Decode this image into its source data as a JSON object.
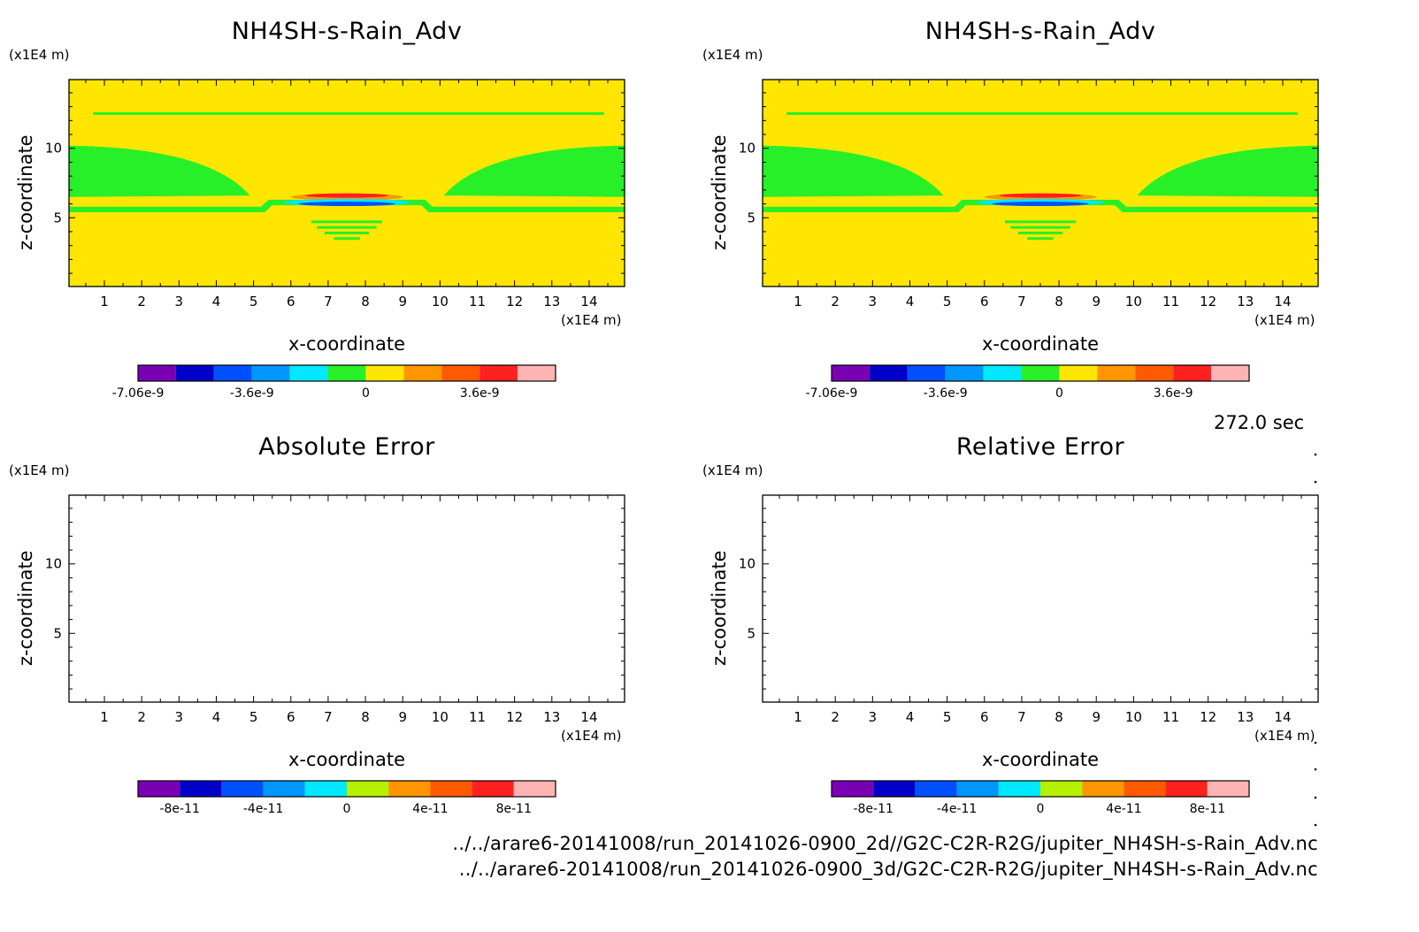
{
  "time_label": "272.0 sec",
  "file_paths": [
    "../../arare6-20141008/run_20141026-0900_2d//G2C-C2R-R2G/jupiter_NH4SH-s-Rain_Adv.nc",
    "../../arare6-20141008/run_20141026-0900_3d/G2C-C2R-R2G/jupiter_NH4SH-s-Rain_Adv.nc"
  ],
  "colors": {
    "field_background": "#ffe600",
    "field_green": "#28f028",
    "field_red": "#ff2020",
    "field_blue": "#0050ff",
    "field_cyan": "#00e8ff",
    "field_orange": "#ff9600"
  },
  "chart_data": [
    {
      "type": "heatmap",
      "title": "NH4SH-s-Rain_Adv",
      "xlabel": "x-coordinate",
      "ylabel": "z-coordinate",
      "x_unit": "(x1E4 m)",
      "y_unit": "(x1E4 m)",
      "xticks": [
        "1",
        "2",
        "3",
        "4",
        "5",
        "6",
        "7",
        "8",
        "9",
        "10",
        "11",
        "12",
        "13",
        "14"
      ],
      "yticks": [
        "5",
        "10"
      ],
      "xlim": [
        0.05,
        14.95
      ],
      "ylim": [
        0.05,
        14.95
      ],
      "colorbar": {
        "labels": [
          "-7.06e-9",
          "-3.6e-9",
          "0",
          "3.6e-9"
        ],
        "colors": [
          "#7a00b4",
          "#0000c8",
          "#0050ff",
          "#0096ff",
          "#00e8ff",
          "#28f028",
          "#ffe600",
          "#ff9600",
          "#ff5a00",
          "#ff2020",
          "#ffb4b4"
        ]
      }
    },
    {
      "type": "heatmap",
      "title": "NH4SH-s-Rain_Adv",
      "xlabel": "x-coordinate",
      "ylabel": "z-coordinate",
      "x_unit": "(x1E4 m)",
      "y_unit": "(x1E4 m)",
      "xticks": [
        "1",
        "2",
        "3",
        "4",
        "5",
        "6",
        "7",
        "8",
        "9",
        "10",
        "11",
        "12",
        "13",
        "14"
      ],
      "yticks": [
        "5",
        "10"
      ],
      "xlim": [
        0.05,
        14.95
      ],
      "ylim": [
        0.05,
        14.95
      ],
      "colorbar": {
        "labels": [
          "-7.06e-9",
          "-3.6e-9",
          "0",
          "3.6e-9"
        ],
        "colors": [
          "#7a00b4",
          "#0000c8",
          "#0050ff",
          "#0096ff",
          "#00e8ff",
          "#28f028",
          "#ffe600",
          "#ff9600",
          "#ff5a00",
          "#ff2020",
          "#ffb4b4"
        ]
      }
    },
    {
      "type": "heatmap",
      "title": "Absolute Error",
      "xlabel": "x-coordinate",
      "ylabel": "z-coordinate",
      "x_unit": "(x1E4 m)",
      "y_unit": "(x1E4 m)",
      "xticks": [
        "1",
        "2",
        "3",
        "4",
        "5",
        "6",
        "7",
        "8",
        "9",
        "10",
        "11",
        "12",
        "13",
        "14"
      ],
      "yticks": [
        "5",
        "10"
      ],
      "xlim": [
        0.05,
        14.95
      ],
      "ylim": [
        0.05,
        14.95
      ],
      "colorbar": {
        "labels": [
          "-8e-11",
          "-4e-11",
          "0",
          "4e-11",
          "8e-11"
        ],
        "colors": [
          "#7a00b4",
          "#0000c8",
          "#0050ff",
          "#0096ff",
          "#00e8ff",
          "#b4f000",
          "#ff9600",
          "#ff5a00",
          "#ff2020",
          "#ffb4b4"
        ]
      }
    },
    {
      "type": "heatmap",
      "title": "Relative Error",
      "xlabel": "x-coordinate",
      "ylabel": "z-coordinate",
      "x_unit": "(x1E4 m)",
      "y_unit": "(x1E4 m)",
      "xticks": [
        "1",
        "2",
        "3",
        "4",
        "5",
        "6",
        "7",
        "8",
        "9",
        "10",
        "11",
        "12",
        "13",
        "14"
      ],
      "yticks": [
        "5",
        "10"
      ],
      "xlim": [
        0.05,
        14.95
      ],
      "ylim": [
        0.05,
        14.95
      ],
      "colorbar": {
        "labels": [
          "-8e-11",
          "-4e-11",
          "0",
          "4e-11",
          "8e-11"
        ],
        "colors": [
          "#7a00b4",
          "#0000c8",
          "#0050ff",
          "#0096ff",
          "#00e8ff",
          "#b4f000",
          "#ff9600",
          "#ff5a00",
          "#ff2020",
          "#ffb4b4"
        ]
      }
    }
  ]
}
